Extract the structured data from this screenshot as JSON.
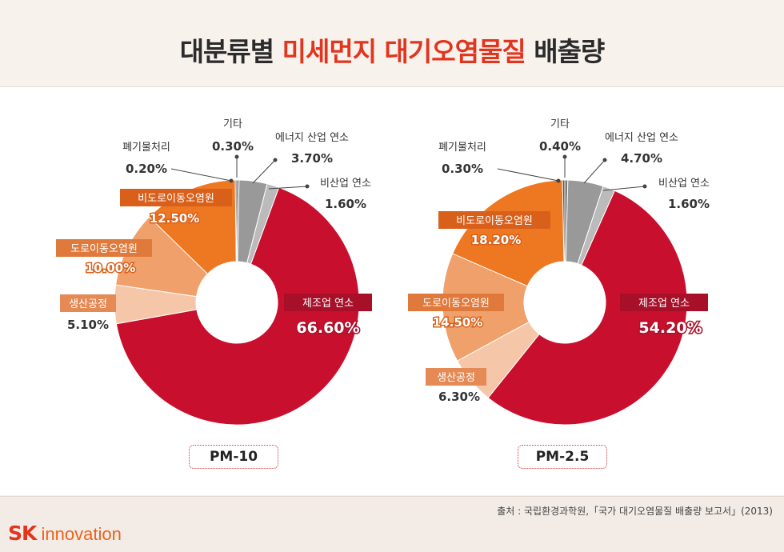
{
  "title": {
    "part1": "대분류별 ",
    "accent": "미세먼지 대기오염물질",
    "part2": " 배출량"
  },
  "source": "출처 : 국립환경과학원,「국가 대기오염물질 배출량 보고서」(2013)",
  "logo": {
    "sk": "SK",
    "rest": " innovation"
  },
  "colors": {
    "manufacturing": "#c8102e",
    "production": "#f5c6a8",
    "road": "#f0a06a",
    "nonroad": "#ee7722",
    "waste": "#555555",
    "other": "#777777",
    "energy": "#999999",
    "nonindustrial": "#bbbbbb"
  },
  "chart_data": [
    {
      "type": "pie",
      "title": "PM-10",
      "slices": [
        {
          "key": "other",
          "label": "기타",
          "value": 0.3,
          "text": "0.30%"
        },
        {
          "key": "energy",
          "label": "에너지 산업 연소",
          "value": 3.7,
          "text": "3.70%"
        },
        {
          "key": "nonindustrial",
          "label": "비산업 연소",
          "value": 1.6,
          "text": "1.60%"
        },
        {
          "key": "manufacturing",
          "label": "제조업 연소",
          "value": 66.6,
          "text": "66.60%"
        },
        {
          "key": "production",
          "label": "생산공정",
          "value": 5.1,
          "text": "5.10%"
        },
        {
          "key": "road",
          "label": "도로이동오염원",
          "value": 10.0,
          "text": "10.00%"
        },
        {
          "key": "nonroad",
          "label": "비도로이동오염원",
          "value": 12.5,
          "text": "12.50%"
        },
        {
          "key": "waste",
          "label": "폐기물처리",
          "value": 0.2,
          "text": "0.20%"
        }
      ]
    },
    {
      "type": "pie",
      "title": "PM-2.5",
      "slices": [
        {
          "key": "other",
          "label": "기타",
          "value": 0.4,
          "text": "0.40%"
        },
        {
          "key": "energy",
          "label": "에너지 산업 연소",
          "value": 4.7,
          "text": "4.70%"
        },
        {
          "key": "nonindustrial",
          "label": "비산업 연소",
          "value": 1.6,
          "text": "1.60%"
        },
        {
          "key": "manufacturing",
          "label": "제조업 연소",
          "value": 54.2,
          "text": "54.20%"
        },
        {
          "key": "production",
          "label": "생산공정",
          "value": 6.3,
          "text": "6.30%"
        },
        {
          "key": "road",
          "label": "도로이동오염원",
          "value": 14.5,
          "text": "14.50%"
        },
        {
          "key": "nonroad",
          "label": "비도로이동오염원",
          "value": 18.2,
          "text": "18.20%"
        },
        {
          "key": "waste",
          "label": "폐기물처리",
          "value": 0.3,
          "text": "0.30%"
        }
      ]
    }
  ]
}
